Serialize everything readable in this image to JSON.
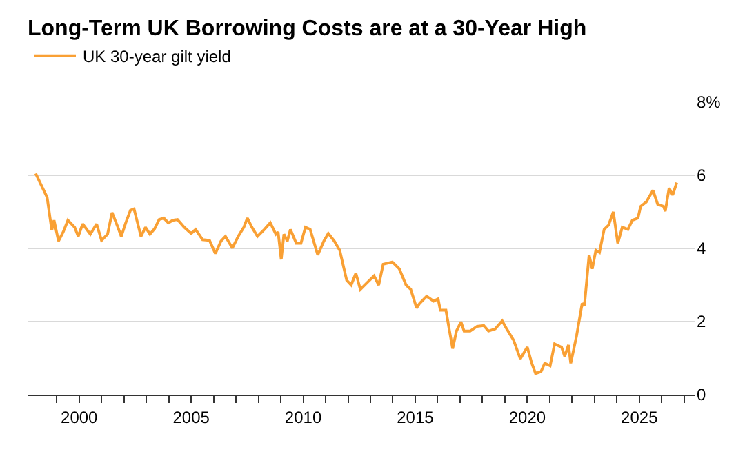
{
  "chart_data": {
    "type": "line",
    "title": "Long-Term UK Borrowing Costs are at a 30-Year High",
    "series": [
      {
        "name": "UK 30-year gilt yield",
        "color": "#f9a034",
        "x": [
          1998.06,
          1998.27,
          1998.57,
          1998.78,
          1998.88,
          1999.08,
          1999.29,
          1999.5,
          1999.8,
          1999.96,
          2000.16,
          2000.5,
          2000.78,
          2001.0,
          2001.27,
          2001.47,
          2001.73,
          2001.88,
          2002.08,
          2002.29,
          2002.45,
          2002.76,
          2002.96,
          2003.16,
          2003.37,
          2003.57,
          2003.78,
          2003.98,
          2004.18,
          2004.39,
          2004.69,
          2005.0,
          2005.2,
          2005.51,
          2005.82,
          2006.08,
          2006.33,
          2006.53,
          2006.84,
          2007.1,
          2007.35,
          2007.51,
          2007.71,
          2007.96,
          2008.27,
          2008.53,
          2008.78,
          2008.88,
          2009.02,
          2009.14,
          2009.29,
          2009.43,
          2009.69,
          2009.9,
          2010.1,
          2010.31,
          2010.65,
          2010.92,
          2011.12,
          2011.39,
          2011.63,
          2011.94,
          2012.14,
          2012.35,
          2012.55,
          2012.86,
          2013.16,
          2013.37,
          2013.57,
          2013.98,
          2014.29,
          2014.59,
          2014.8,
          2015.06,
          2015.2,
          2015.51,
          2015.82,
          2016.02,
          2016.12,
          2016.37,
          2016.53,
          2016.67,
          2016.84,
          2017.04,
          2017.18,
          2017.45,
          2017.76,
          2018.06,
          2018.27,
          2018.57,
          2018.88,
          2019.08,
          2019.39,
          2019.69,
          2020.0,
          2020.2,
          2020.37,
          2020.61,
          2020.78,
          2021.02,
          2021.22,
          2021.53,
          2021.67,
          2021.84,
          2021.94,
          2022.2,
          2022.45,
          2022.55,
          2022.76,
          2022.9,
          2023.06,
          2023.22,
          2023.43,
          2023.63,
          2023.84,
          2024.04,
          2024.24,
          2024.49,
          2024.69,
          2024.94,
          2025.06,
          2025.31,
          2025.61,
          2025.82,
          2026.08,
          2026.16,
          2026.33,
          2026.49,
          2026.67
        ],
        "values": [
          6.05,
          5.78,
          5.4,
          4.5,
          4.77,
          4.2,
          4.45,
          4.77,
          4.58,
          4.33,
          4.67,
          4.39,
          4.67,
          4.22,
          4.39,
          4.98,
          4.58,
          4.33,
          4.7,
          5.04,
          5.08,
          4.33,
          4.58,
          4.39,
          4.54,
          4.79,
          4.83,
          4.7,
          4.77,
          4.79,
          4.58,
          4.41,
          4.52,
          4.24,
          4.22,
          3.86,
          4.2,
          4.33,
          4.01,
          4.33,
          4.58,
          4.83,
          4.58,
          4.33,
          4.52,
          4.7,
          4.39,
          4.45,
          3.7,
          4.39,
          4.2,
          4.52,
          4.14,
          4.14,
          4.58,
          4.52,
          3.82,
          4.2,
          4.41,
          4.2,
          3.95,
          3.13,
          3.0,
          3.32,
          2.88,
          3.07,
          3.25,
          3.0,
          3.57,
          3.63,
          3.44,
          3.0,
          2.88,
          2.37,
          2.5,
          2.69,
          2.56,
          2.62,
          2.31,
          2.31,
          1.74,
          1.26,
          1.74,
          1.99,
          1.74,
          1.74,
          1.87,
          1.89,
          1.74,
          1.8,
          2.02,
          1.8,
          1.49,
          0.98,
          1.3,
          0.86,
          0.58,
          0.63,
          0.86,
          0.79,
          1.39,
          1.3,
          1.05,
          1.36,
          0.86,
          1.61,
          2.5,
          2.43,
          3.82,
          3.44,
          3.95,
          3.89,
          4.52,
          4.64,
          5.0,
          4.14,
          4.58,
          4.52,
          4.77,
          4.83,
          5.15,
          5.27,
          5.59,
          5.21,
          5.15,
          5.02,
          5.65,
          5.46,
          5.8
        ]
      }
    ],
    "xlim": [
      1997.7,
      2027.5
    ],
    "xticks": [
      {
        "value": 1999,
        "label": null
      },
      {
        "value": 2000,
        "label": "2000"
      },
      {
        "value": 2001,
        "label": null
      },
      {
        "value": 2002,
        "label": null
      },
      {
        "value": 2003,
        "label": null
      },
      {
        "value": 2004,
        "label": null
      },
      {
        "value": 2005,
        "label": "2005"
      },
      {
        "value": 2006,
        "label": null
      },
      {
        "value": 2007,
        "label": null
      },
      {
        "value": 2008,
        "label": null
      },
      {
        "value": 2009,
        "label": null
      },
      {
        "value": 2010,
        "label": "2010"
      },
      {
        "value": 2011,
        "label": null
      },
      {
        "value": 2012,
        "label": null
      },
      {
        "value": 2013,
        "label": null
      },
      {
        "value": 2014,
        "label": null
      },
      {
        "value": 2015,
        "label": "2015"
      },
      {
        "value": 2016,
        "label": null
      },
      {
        "value": 2017,
        "label": null
      },
      {
        "value": 2018,
        "label": null
      },
      {
        "value": 2019,
        "label": null
      },
      {
        "value": 2020,
        "label": "2020"
      },
      {
        "value": 2021,
        "label": null
      },
      {
        "value": 2022,
        "label": null
      },
      {
        "value": 2023,
        "label": null
      },
      {
        "value": 2024,
        "label": null
      },
      {
        "value": 2025,
        "label": "2025"
      },
      {
        "value": 2026,
        "label": null
      },
      {
        "value": 2027,
        "label": null
      }
    ],
    "ylim": [
      0,
      8
    ],
    "yticks": [
      0,
      2,
      4,
      6,
      {
        "value": 8,
        "label": "8%"
      }
    ],
    "grid": "y",
    "legend": "top left",
    "marker": "none",
    "line_style": "solid"
  }
}
